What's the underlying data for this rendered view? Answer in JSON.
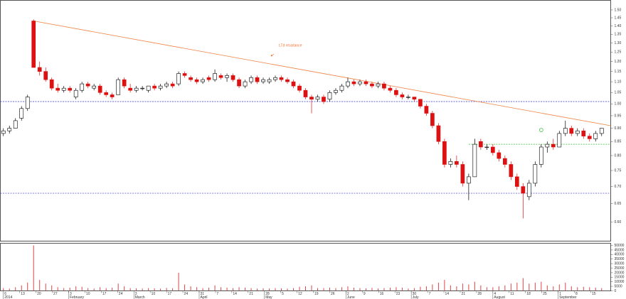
{
  "chart_data": {
    "type": "candlestick",
    "annotation": "LTd resistance",
    "colors": {
      "up": "#ffffff",
      "down": "#dd1111",
      "outline": "#000000",
      "volume": "#dd4444"
    },
    "xlim": [
      -0.5,
      100.5
    ],
    "ylim": [
      0.553,
      1.563
    ],
    "log": true,
    "vlim": [
      0,
      52000
    ],
    "open": [
      0.88,
      0.89,
      0.9,
      0.94,
      0.98,
      1.43,
      1.17,
      1.15,
      1.11,
      1.07,
      1.06,
      1.07,
      1.03,
      1.06,
      1.09,
      1.07,
      1.08,
      1.05,
      1.04,
      1.04,
      1.11,
      1.07,
      1.06,
      1.07,
      1.06,
      1.08,
      1.07,
      1.08,
      1.09,
      1.09,
      1.14,
      1.12,
      1.11,
      1.1,
      1.12,
      1.11,
      1.13,
      1.12,
      1.13,
      1.11,
      1.08,
      1.1,
      1.12,
      1.1,
      1.1,
      1.11,
      1.12,
      1.11,
      1.1,
      1.08,
      1.06,
      1.03,
      1.02,
      1.03,
      1.02,
      1.05,
      1.06,
      1.08,
      1.1,
      1.09,
      1.1,
      1.09,
      1.08,
      1.09,
      1.07,
      1.06,
      1.04,
      1.03,
      1.03,
      1.02,
      0.99,
      0.96,
      0.91,
      0.85,
      0.77,
      0.78,
      0.77,
      0.71,
      0.73,
      0.85,
      0.83,
      0.83,
      0.81,
      0.79,
      0.77,
      0.73,
      0.7,
      0.67,
      0.71,
      0.77,
      0.83,
      0.84,
      0.83,
      0.88,
      0.9,
      0.88,
      0.89,
      0.87,
      0.86,
      0.88
    ],
    "high": [
      0.9,
      0.91,
      0.94,
      0.99,
      1.04,
      1.44,
      1.2,
      1.17,
      1.12,
      1.09,
      1.08,
      1.08,
      1.07,
      1.1,
      1.1,
      1.09,
      1.09,
      1.06,
      1.05,
      1.12,
      1.12,
      1.09,
      1.08,
      1.08,
      1.08,
      1.09,
      1.09,
      1.1,
      1.1,
      1.15,
      1.15,
      1.13,
      1.12,
      1.12,
      1.13,
      1.16,
      1.14,
      1.14,
      1.14,
      1.12,
      1.11,
      1.13,
      1.13,
      1.12,
      1.12,
      1.13,
      1.13,
      1.12,
      1.11,
      1.09,
      1.07,
      1.04,
      1.04,
      1.04,
      1.06,
      1.07,
      1.09,
      1.12,
      1.11,
      1.11,
      1.11,
      1.1,
      1.1,
      1.1,
      1.08,
      1.07,
      1.05,
      1.04,
      1.03,
      1.02,
      1.0,
      0.97,
      0.92,
      0.86,
      0.79,
      0.8,
      0.78,
      0.74,
      0.86,
      0.86,
      0.84,
      0.84,
      0.82,
      0.8,
      0.78,
      0.74,
      0.71,
      0.72,
      0.78,
      0.84,
      0.85,
      0.86,
      0.89,
      0.93,
      0.91,
      0.9,
      0.9,
      0.88,
      0.89,
      0.9
    ],
    "low": [
      0.87,
      0.88,
      0.9,
      0.93,
      0.97,
      1.17,
      1.13,
      1.1,
      1.06,
      1.05,
      1.05,
      1.05,
      1.02,
      1.05,
      1.07,
      1.06,
      1.04,
      1.03,
      1.02,
      1.04,
      1.07,
      1.05,
      1.05,
      1.06,
      1.05,
      1.06,
      1.06,
      1.07,
      1.07,
      1.08,
      1.12,
      1.1,
      1.09,
      1.09,
      1.1,
      1.1,
      1.11,
      1.1,
      1.1,
      1.07,
      1.07,
      1.09,
      1.09,
      1.09,
      1.09,
      1.1,
      1.1,
      1.09,
      1.07,
      1.05,
      1.02,
      0.96,
      1.01,
      1.0,
      1.01,
      1.04,
      1.05,
      1.07,
      1.08,
      1.08,
      1.08,
      1.07,
      1.07,
      1.06,
      1.05,
      1.03,
      1.02,
      1.02,
      1.01,
      0.98,
      0.95,
      0.9,
      0.84,
      0.76,
      0.76,
      0.76,
      0.7,
      0.66,
      0.73,
      0.82,
      0.82,
      0.8,
      0.78,
      0.76,
      0.72,
      0.69,
      0.61,
      0.66,
      0.7,
      0.76,
      0.81,
      0.82,
      0.83,
      0.87,
      0.87,
      0.87,
      0.86,
      0.85,
      0.85,
      0.87
    ],
    "close": [
      0.89,
      0.9,
      0.93,
      0.98,
      1.03,
      1.17,
      1.15,
      1.11,
      1.07,
      1.06,
      1.07,
      1.06,
      1.06,
      1.09,
      1.08,
      1.08,
      1.05,
      1.04,
      1.03,
      1.11,
      1.08,
      1.06,
      1.07,
      1.07,
      1.08,
      1.07,
      1.08,
      1.09,
      1.08,
      1.14,
      1.13,
      1.11,
      1.1,
      1.11,
      1.11,
      1.14,
      1.12,
      1.13,
      1.11,
      1.08,
      1.1,
      1.12,
      1.1,
      1.11,
      1.11,
      1.12,
      1.11,
      1.1,
      1.08,
      1.06,
      1.03,
      1.02,
      1.03,
      1.01,
      1.05,
      1.06,
      1.08,
      1.1,
      1.09,
      1.1,
      1.09,
      1.08,
      1.09,
      1.07,
      1.06,
      1.04,
      1.03,
      1.03,
      1.02,
      0.99,
      0.96,
      0.91,
      0.85,
      0.77,
      0.78,
      0.77,
      0.71,
      0.73,
      0.84,
      0.83,
      0.83,
      0.81,
      0.79,
      0.77,
      0.73,
      0.7,
      0.68,
      0.71,
      0.77,
      0.83,
      0.84,
      0.83,
      0.88,
      0.9,
      0.88,
      0.89,
      0.87,
      0.86,
      0.88,
      0.9
    ],
    "volume": [
      3000,
      2500,
      4000,
      6000,
      9000,
      50000,
      12000,
      8000,
      6000,
      4000,
      3000,
      3500,
      5000,
      4500,
      3000,
      2500,
      4000,
      3000,
      3500,
      8000,
      5000,
      3000,
      2800,
      2600,
      3000,
      2700,
      2500,
      3200,
      2900,
      20000,
      7000,
      5000,
      4000,
      3000,
      3500,
      6000,
      4000,
      3500,
      3000,
      4000,
      3500,
      3000,
      2500,
      2800,
      2600,
      3000,
      2700,
      2500,
      3000,
      4500,
      5000,
      6000,
      3000,
      3000,
      3500,
      3000,
      4000,
      5000,
      3500,
      3000,
      2800,
      3200,
      2600,
      3000,
      3500,
      4000,
      3500,
      2500,
      3000,
      4500,
      5000,
      7000,
      9000,
      12000,
      6000,
      5000,
      8000,
      7000,
      10000,
      6000,
      4000,
      4000,
      5000,
      6000,
      8000,
      9000,
      14000,
      8000,
      9000,
      10000,
      6000,
      5000,
      7000,
      9000,
      5000,
      4000,
      4500,
      4000,
      3500,
      3000
    ],
    "hlines": [
      {
        "value": 1.01,
        "color": "#3333cc"
      },
      {
        "value": 0.68,
        "color": "#3333cc"
      }
    ],
    "support": {
      "value": 0.84,
      "from": 77,
      "color": "#33bb33"
    },
    "trendline": {
      "x": [
        5,
        100.5
      ],
      "y": [
        1.43,
        0.91
      ],
      "color": "#f08040"
    },
    "marker": {
      "x": 89,
      "y": 0.893,
      "color": "#33bb33"
    },
    "yticks": [
      {
        "value": 0.6,
        "label": "0.60"
      },
      {
        "value": 0.65,
        "label": "0.65"
      },
      {
        "value": 0.7,
        "label": "0.70"
      },
      {
        "value": 0.75,
        "label": "0.75"
      },
      {
        "value": 0.8,
        "label": "0.80"
      },
      {
        "value": 0.85,
        "label": "0.85"
      },
      {
        "value": 0.9,
        "label": "0.90"
      },
      {
        "value": 0.95,
        "label": "0.95"
      },
      {
        "value": 1.0,
        "label": "1.00"
      },
      {
        "value": 1.05,
        "label": "1.05"
      },
      {
        "value": 1.1,
        "label": "1.10"
      },
      {
        "value": 1.15,
        "label": "1.15"
      },
      {
        "value": 1.2,
        "label": "1.20"
      },
      {
        "value": 1.25,
        "label": "1.25"
      },
      {
        "value": 1.3,
        "label": "1.30"
      },
      {
        "value": 1.35,
        "label": "1.35"
      },
      {
        "value": 1.4,
        "label": "1.40"
      },
      {
        "value": 1.45,
        "label": "1.45"
      },
      {
        "value": 1.5,
        "label": "1.50"
      }
    ],
    "vticks": [
      0,
      5000,
      10000,
      15000,
      20000,
      25000,
      30000,
      35000,
      40000,
      45000,
      50000
    ],
    "xticks": [
      {
        "value": 0,
        "label": "6"
      },
      {
        "value": 2.7,
        "label": "13"
      },
      {
        "value": 5.4,
        "label": "20"
      },
      {
        "value": 8.1,
        "label": "27"
      },
      {
        "value": 10.8,
        "label": "3"
      },
      {
        "value": 13.5,
        "label": "10"
      },
      {
        "value": 16.2,
        "label": "17"
      },
      {
        "value": 18.9,
        "label": "24"
      },
      {
        "value": 21.6,
        "label": "3"
      },
      {
        "value": 24.3,
        "label": "10"
      },
      {
        "value": 27,
        "label": "17"
      },
      {
        "value": 29.7,
        "label": "24"
      },
      {
        "value": 32.4,
        "label": "31"
      },
      {
        "value": 35.1,
        "label": "7"
      },
      {
        "value": 37.8,
        "label": "14"
      },
      {
        "value": 40.5,
        "label": "21"
      },
      {
        "value": 43.2,
        "label": "28"
      },
      {
        "value": 45.9,
        "label": "5"
      },
      {
        "value": 48.6,
        "label": "12"
      },
      {
        "value": 51.3,
        "label": "19"
      },
      {
        "value": 54,
        "label": "26"
      },
      {
        "value": 56.7,
        "label": "2"
      },
      {
        "value": 59.4,
        "label": "9"
      },
      {
        "value": 62.1,
        "label": "16"
      },
      {
        "value": 64.8,
        "label": "23"
      },
      {
        "value": 67.5,
        "label": "30"
      },
      {
        "value": 70.2,
        "label": "7"
      },
      {
        "value": 72.9,
        "label": "14"
      },
      {
        "value": 75.6,
        "label": "21"
      },
      {
        "value": 78.3,
        "label": "28"
      },
      {
        "value": 81,
        "label": "4"
      },
      {
        "value": 83.7,
        "label": "11"
      },
      {
        "value": 86.4,
        "label": "18"
      },
      {
        "value": 89.1,
        "label": "25"
      },
      {
        "value": 91.8,
        "label": "1"
      },
      {
        "value": 94.5,
        "label": "8"
      },
      {
        "value": 97.2,
        "label": "15"
      }
    ],
    "month_ticks": [
      {
        "value": 0,
        "label": "2014"
      },
      {
        "value": 10.8,
        "label": "February"
      },
      {
        "value": 21.6,
        "label": "March"
      },
      {
        "value": 32.4,
        "label": "April"
      },
      {
        "value": 43.2,
        "label": "May"
      },
      {
        "value": 56.7,
        "label": "June"
      },
      {
        "value": 67.5,
        "label": "July"
      },
      {
        "value": 81,
        "label": "August"
      },
      {
        "value": 91.8,
        "label": "September"
      }
    ]
  }
}
